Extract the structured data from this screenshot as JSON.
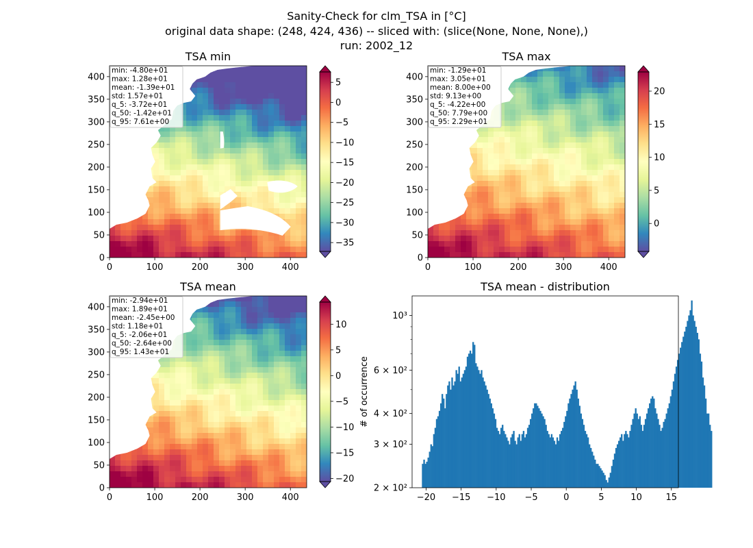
{
  "figure": {
    "title_lines": [
      "Sanity-Check for clm_TSA in [°C]",
      "original data shape: (248, 424, 436) -- sliced with: (slice(None, None, None),)",
      "run: 2002_12"
    ]
  },
  "colormap": {
    "name": "Spectral_r",
    "stops": [
      "#5e4fa2",
      "#3288bd",
      "#66c2a5",
      "#abdda4",
      "#e6f598",
      "#ffffbf",
      "#fee08b",
      "#fdae61",
      "#f46d43",
      "#d53e4f",
      "#9e0142"
    ]
  },
  "maps": [
    {
      "id": "min",
      "title": "TSA min",
      "stats": [
        "min: -4.80e+01",
        "max: 1.28e+01",
        "mean: -1.39e+01",
        "std: 1.57e+01",
        "q_5: -3.72e+01",
        "q_50: -1.42e+01",
        "q_95: 7.61e+00"
      ],
      "xticks": [
        "0",
        "100",
        "200",
        "300",
        "400"
      ],
      "yticks": [
        "0",
        "50",
        "100",
        "150",
        "200",
        "250",
        "300",
        "350",
        "400"
      ],
      "colorbar": {
        "vmin": -37.2,
        "vmax": 7.6,
        "ticks": [
          "5",
          "0",
          "−5",
          "−10",
          "−15",
          "−20",
          "−25",
          "−30",
          "−35"
        ],
        "tick_values": [
          5,
          0,
          -5,
          -10,
          -15,
          -20,
          -25,
          -30,
          -35
        ]
      }
    },
    {
      "id": "max",
      "title": "TSA max",
      "stats": [
        "min: -1.29e+01",
        "max: 3.05e+01",
        "mean: 8.00e+00",
        "std: 9.13e+00",
        "q_5: -4.22e+00",
        "q_50: 7.79e+00",
        "q_95: 2.29e+01"
      ],
      "xticks": [
        "0",
        "100",
        "200",
        "300",
        "400"
      ],
      "yticks": [
        "0",
        "50",
        "100",
        "150",
        "200",
        "250",
        "300",
        "350",
        "400"
      ],
      "colorbar": {
        "vmin": -4.22,
        "vmax": 22.9,
        "ticks": [
          "20",
          "15",
          "10",
          "5",
          "0"
        ],
        "tick_values": [
          20,
          15,
          10,
          5,
          0
        ]
      }
    },
    {
      "id": "mean",
      "title": "TSA mean",
      "stats": [
        "min: -2.94e+01",
        "max: 1.89e+01",
        "mean: -2.45e+00",
        "std: 1.18e+01",
        "q_5: -2.06e+01",
        "q_50: -2.64e+00",
        "q_95: 1.43e+01"
      ],
      "xticks": [
        "0",
        "100",
        "200",
        "300",
        "400"
      ],
      "yticks": [
        "0",
        "50",
        "100",
        "150",
        "200",
        "250",
        "300",
        "350",
        "400"
      ],
      "colorbar": {
        "vmin": -20.6,
        "vmax": 14.3,
        "ticks": [
          "10",
          "5",
          "0",
          "−5",
          "−10",
          "−15",
          "−20"
        ],
        "tick_values": [
          10,
          5,
          0,
          -5,
          -10,
          -15,
          -20
        ]
      }
    }
  ],
  "chart_data": {
    "type": "bar",
    "title": "TSA mean - distribution",
    "xlabel": "",
    "ylabel": "# of occurrence",
    "yscale": "log",
    "xlim": [
      -22,
      16
    ],
    "ylim": [
      200,
      1200
    ],
    "color": "#1f77b4",
    "xticks": [
      "−20",
      "−15",
      "−10",
      "−5",
      "0",
      "5",
      "10",
      "15"
    ],
    "xtick_values": [
      -20,
      -15,
      -10,
      -5,
      0,
      5,
      10,
      15
    ],
    "yticks": [
      "2 × 10²",
      "3 × 10²",
      "4 × 10²",
      "6 × 10²",
      "10³"
    ],
    "ytick_values": [
      200,
      300,
      400,
      600,
      1000
    ],
    "bin_start": -20.6,
    "bin_width": 0.2,
    "counts": [
      250,
      260,
      250,
      255,
      265,
      280,
      300,
      295,
      330,
      350,
      380,
      390,
      410,
      440,
      480,
      460,
      420,
      480,
      520,
      540,
      500,
      560,
      520,
      540,
      600,
      580,
      620,
      540,
      560,
      580,
      600,
      620,
      680,
      700,
      720,
      700,
      780,
      760,
      640,
      620,
      600,
      580,
      600,
      560,
      540,
      520,
      500,
      480,
      460,
      440,
      420,
      400,
      380,
      350,
      340,
      330,
      350,
      360,
      340,
      330,
      320,
      310,
      300,
      320,
      330,
      340,
      310,
      300,
      320,
      330,
      310,
      330,
      340,
      320,
      330,
      350,
      360,
      380,
      400,
      420,
      440,
      440,
      430,
      420,
      410,
      400,
      390,
      380,
      360,
      340,
      330,
      320,
      330,
      320,
      310,
      300,
      320,
      310,
      330,
      340,
      350,
      370,
      390,
      410,
      440,
      460,
      480,
      500,
      520,
      540,
      500,
      460,
      430,
      400,
      380,
      360,
      340,
      330,
      320,
      300,
      290,
      280,
      270,
      260,
      250,
      250,
      245,
      240,
      235,
      230,
      225,
      215,
      210,
      220,
      230,
      245,
      260,
      275,
      290,
      300,
      310,
      320,
      330,
      310,
      330,
      340,
      330,
      320,
      340,
      360,
      380,
      400,
      420,
      400,
      380,
      390,
      360,
      340,
      360,
      380,
      400,
      420,
      440,
      460,
      470,
      460,
      420,
      400,
      380,
      360,
      340,
      350,
      370,
      380,
      400,
      420,
      440,
      470,
      500,
      540,
      580,
      620,
      660,
      700,
      740,
      780,
      820,
      860,
      900,
      950,
      1000,
      1050,
      1150,
      1000,
      950,
      900,
      850,
      800,
      700,
      650,
      560,
      520,
      460,
      400,
      400,
      360,
      340
    ]
  }
}
